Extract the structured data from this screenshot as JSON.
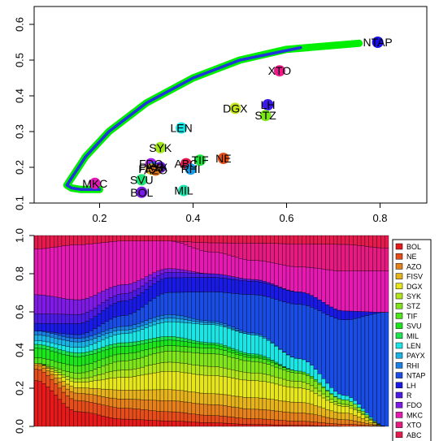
{
  "chart_data": [
    {
      "type": "scatter",
      "title": "",
      "xlabel": "",
      "ylabel": "",
      "xlim": [
        0.06,
        0.9
      ],
      "ylim": [
        0.1,
        0.65
      ],
      "x_ticks": [
        "0.2",
        "0.4",
        "0.6",
        "0.8"
      ],
      "y_ticks": [
        "0.1",
        "0.2",
        "0.3",
        "0.4",
        "0.5",
        "0.6"
      ],
      "frontier_curve": {
        "colors": [
          "#00ee00",
          "#2233dd"
        ],
        "x": [
          0.755,
          0.6,
          0.5,
          0.4,
          0.3,
          0.22,
          0.17,
          0.15,
          0.135,
          0.13,
          0.14,
          0.16,
          0.19,
          0.2
        ],
        "y": [
          0.547,
          0.53,
          0.5,
          0.45,
          0.38,
          0.3,
          0.23,
          0.19,
          0.16,
          0.15,
          0.142,
          0.138,
          0.138,
          0.138
        ]
      },
      "points": [
        {
          "label": "NTAP",
          "x": 0.795,
          "y": 0.55,
          "color": "#1a0fe6"
        },
        {
          "label": "XTO",
          "x": 0.585,
          "y": 0.47,
          "color": "#ee1a8c"
        },
        {
          "label": "LH",
          "x": 0.56,
          "y": 0.375,
          "color": "#3a1ae6"
        },
        {
          "label": "DGX",
          "x": 0.49,
          "y": 0.365,
          "color": "#c4e61a"
        },
        {
          "label": "STZ",
          "x": 0.555,
          "y": 0.345,
          "color": "#7ce61a"
        },
        {
          "label": "LEN",
          "x": 0.375,
          "y": 0.31,
          "color": "#1ae6e6"
        },
        {
          "label": "SYK",
          "x": 0.33,
          "y": 0.255,
          "color": "#a0e61a"
        },
        {
          "label": "NE",
          "x": 0.465,
          "y": 0.225,
          "color": "#e6501a"
        },
        {
          "label": "TIF",
          "x": 0.415,
          "y": 0.22,
          "color": "#1ae63c"
        },
        {
          "label": "ABC",
          "x": 0.385,
          "y": 0.21,
          "color": "#e61a50"
        },
        {
          "label": "FDO",
          "x": 0.31,
          "y": 0.21,
          "color": "#a21ae6"
        },
        {
          "label": "RHI",
          "x": 0.395,
          "y": 0.195,
          "color": "#1a9ce6"
        },
        {
          "label": "PAYX",
          "x": 0.315,
          "y": 0.2,
          "color": "#1a6be6"
        },
        {
          "label": "R",
          "x": 0.33,
          "y": 0.2,
          "color": "#6b1ae6"
        },
        {
          "label": "FISV",
          "x": 0.31,
          "y": 0.195,
          "color": "#e6b41a"
        },
        {
          "label": "AZO",
          "x": 0.32,
          "y": 0.192,
          "color": "#e6781a"
        },
        {
          "label": "SVU",
          "x": 0.29,
          "y": 0.165,
          "color": "#1ae676"
        },
        {
          "label": "MKC",
          "x": 0.19,
          "y": 0.155,
          "color": "#e61ab8"
        },
        {
          "label": "BOL",
          "x": 0.29,
          "y": 0.13,
          "color": "#7a1ae6"
        },
        {
          "label": "MIL",
          "x": 0.38,
          "y": 0.135,
          "color": "#1ae6b0"
        }
      ]
    },
    {
      "type": "area",
      "title": "",
      "xlabel": "",
      "ylabel": "",
      "stacked": true,
      "ylim": [
        0,
        1
      ],
      "y_ticks": [
        "0.0",
        "0.2",
        "0.4",
        "0.6",
        "0.8",
        "1.0"
      ],
      "n_bars": 90,
      "x_knots": [
        0,
        0.12,
        0.25,
        0.38,
        0.5,
        0.62,
        0.75,
        0.88,
        1
      ],
      "legend_position": "right",
      "series": [
        {
          "name": "BOL",
          "color": "#e61a1a",
          "knots": [
            0.24,
            0.08,
            0.04,
            0.03,
            0.02,
            0.01,
            0.005,
            0,
            0
          ]
        },
        {
          "name": "NE",
          "color": "#e64d1a",
          "knots": [
            0.06,
            0.06,
            0.06,
            0.05,
            0.04,
            0.03,
            0.02,
            0.01,
            0
          ]
        },
        {
          "name": "AZO",
          "color": "#e6801a",
          "knots": [
            0.02,
            0.04,
            0.05,
            0.06,
            0.06,
            0.05,
            0.04,
            0.02,
            0
          ]
        },
        {
          "name": "FISV",
          "color": "#e6b31a",
          "knots": [
            0.01,
            0.03,
            0.05,
            0.06,
            0.06,
            0.06,
            0.05,
            0.03,
            0
          ]
        },
        {
          "name": "DGX",
          "color": "#e6e61a",
          "knots": [
            0,
            0.03,
            0.07,
            0.1,
            0.1,
            0.09,
            0.07,
            0.03,
            0
          ]
        },
        {
          "name": "SYK",
          "color": "#b3e61a",
          "knots": [
            0,
            0.02,
            0.04,
            0.05,
            0.05,
            0.04,
            0.03,
            0.01,
            0
          ]
        },
        {
          "name": "STZ",
          "color": "#80e61a",
          "knots": [
            0,
            0.03,
            0.05,
            0.06,
            0.07,
            0.06,
            0.04,
            0.02,
            0
          ]
        },
        {
          "name": "TIF",
          "color": "#4de61a",
          "knots": [
            0.03,
            0.04,
            0.04,
            0.03,
            0.03,
            0.02,
            0.01,
            0,
            0
          ]
        },
        {
          "name": "SVU",
          "color": "#1ae61a",
          "knots": [
            0.05,
            0.05,
            0.04,
            0.03,
            0.02,
            0.01,
            0,
            0,
            0
          ]
        },
        {
          "name": "MIL",
          "color": "#1ae64d",
          "knots": [
            0.02,
            0.02,
            0.02,
            0.02,
            0.01,
            0.01,
            0,
            0,
            0
          ]
        },
        {
          "name": "LEN",
          "color": "#1ae6e6",
          "knots": [
            0.02,
            0.03,
            0.05,
            0.08,
            0.1,
            0.1,
            0.06,
            0.02,
            0
          ]
        },
        {
          "name": "PAYX",
          "color": "#1ab3e6",
          "knots": [
            0.03,
            0.03,
            0.02,
            0.02,
            0.01,
            0,
            0,
            0,
            0
          ]
        },
        {
          "name": "RHI",
          "color": "#1a80e6",
          "knots": [
            0.02,
            0.02,
            0.02,
            0.02,
            0.01,
            0.01,
            0,
            0,
            0
          ]
        },
        {
          "name": "NTAP",
          "color": "#1a4de6",
          "knots": [
            0,
            0.02,
            0.06,
            0.12,
            0.16,
            0.2,
            0.26,
            0.34,
            0.55
          ]
        },
        {
          "name": "LH",
          "color": "#1a1ae6",
          "knots": [
            0.04,
            0.06,
            0.08,
            0.08,
            0.08,
            0.07,
            0.06,
            0.04,
            0
          ]
        },
        {
          "name": "R",
          "color": "#4d1ae6",
          "knots": [
            0.05,
            0.05,
            0.04,
            0.03,
            0.02,
            0.01,
            0,
            0,
            0
          ]
        },
        {
          "name": "FDO",
          "color": "#801ae6",
          "knots": [
            0.1,
            0.08,
            0.05,
            0.02,
            0,
            0,
            0,
            0,
            0
          ]
        },
        {
          "name": "MKC",
          "color": "#e61ab3",
          "knots": [
            0.24,
            0.3,
            0.24,
            0.15,
            0.12,
            0.1,
            0.12,
            0.18,
            0.2
          ]
        },
        {
          "name": "XTO",
          "color": "#e61a80",
          "knots": [
            0,
            0,
            0,
            0,
            0.05,
            0.09,
            0.11,
            0.12,
            0.11
          ]
        },
        {
          "name": "ABC",
          "color": "#e61a4d",
          "knots": [
            0.07,
            0.05,
            0.03,
            0.03,
            0.04,
            0.04,
            0.04,
            0.04,
            0.06
          ]
        }
      ]
    }
  ]
}
